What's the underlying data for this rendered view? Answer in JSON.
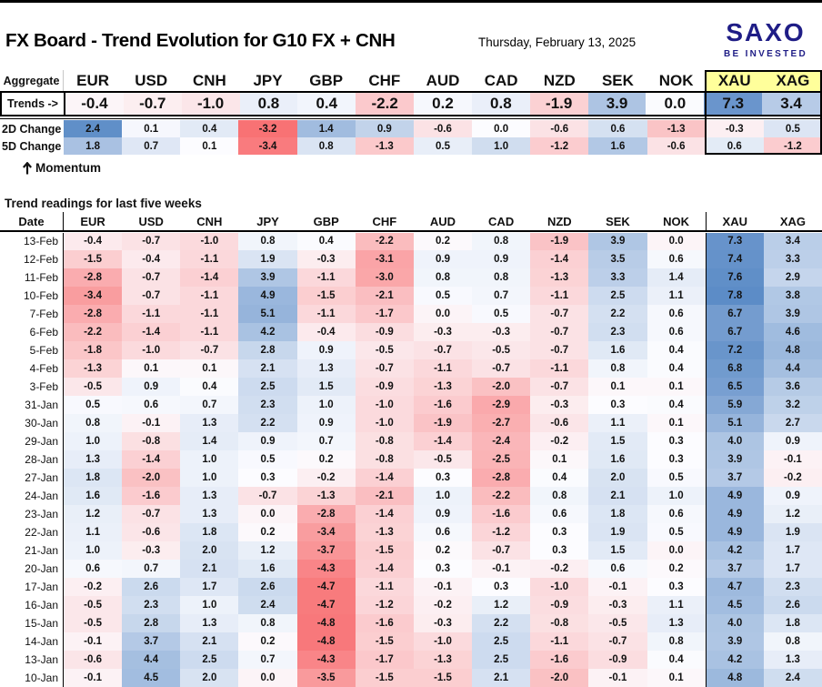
{
  "header": {
    "title": "FX Board - Trend Evolution for G10 FX + CNH",
    "date": "Thursday, February 13, 2025"
  },
  "logo": {
    "brand": "SAXO",
    "tagline": "BE INVESTED"
  },
  "aggregate": {
    "corner_label": "Aggregate",
    "trends_label": "Trends ->",
    "change_2d_label": "2D Change",
    "change_5d_label": "5D Change",
    "momentum_icon": "up-arrow",
    "momentum_label": "Momentum",
    "currencies": [
      "EUR",
      "USD",
      "CNH",
      "JPY",
      "GBP",
      "CHF",
      "AUD",
      "CAD",
      "NZD",
      "SEK",
      "NOK",
      "XAU",
      "XAG"
    ],
    "trends": [
      -0.4,
      -0.7,
      -1.0,
      0.8,
      0.4,
      -2.2,
      0.2,
      0.8,
      -1.9,
      3.9,
      0.0,
      7.3,
      3.4
    ],
    "change_2d": [
      2.4,
      0.1,
      0.4,
      -3.2,
      1.4,
      0.9,
      -0.6,
      0.0,
      -0.6,
      0.6,
      -1.3,
      -0.3,
      0.5
    ],
    "change_5d": [
      1.8,
      0.7,
      0.1,
      -3.4,
      0.8,
      -1.3,
      0.5,
      1.0,
      -1.2,
      1.6,
      -0.6,
      0.6,
      -1.2
    ]
  },
  "history": {
    "section_title": "Trend readings for last five weeks",
    "date_header": "Date",
    "currencies": [
      "EUR",
      "USD",
      "CNH",
      "JPY",
      "GBP",
      "CHF",
      "AUD",
      "CAD",
      "NZD",
      "SEK",
      "NOK",
      "XAU",
      "XAG"
    ],
    "rows": [
      {
        "date": "13-Feb",
        "values": [
          -0.4,
          -0.7,
          -1.0,
          0.8,
          0.4,
          -2.2,
          0.2,
          0.8,
          -1.9,
          3.9,
          0.0,
          7.3,
          3.4
        ]
      },
      {
        "date": "12-Feb",
        "values": [
          -1.5,
          -0.4,
          -1.1,
          1.9,
          -0.3,
          -3.1,
          0.9,
          0.9,
          -1.4,
          3.5,
          0.6,
          7.4,
          3.3
        ]
      },
      {
        "date": "11-Feb",
        "values": [
          -2.8,
          -0.7,
          -1.4,
          3.9,
          -1.1,
          -3.0,
          0.8,
          0.8,
          -1.3,
          3.3,
          1.4,
          7.6,
          2.9
        ]
      },
      {
        "date": "10-Feb",
        "values": [
          -3.4,
          -0.7,
          -1.1,
          4.9,
          -1.5,
          -2.1,
          0.5,
          0.7,
          -1.1,
          2.5,
          1.1,
          7.8,
          3.8
        ]
      },
      {
        "date": "7-Feb",
        "values": [
          -2.8,
          -1.1,
          -1.1,
          5.1,
          -1.1,
          -1.7,
          0.0,
          0.5,
          -0.7,
          2.2,
          0.6,
          6.7,
          3.9
        ]
      },
      {
        "date": "6-Feb",
        "values": [
          -2.2,
          -1.4,
          -1.1,
          4.2,
          -0.4,
          -0.9,
          -0.3,
          -0.3,
          -0.7,
          2.3,
          0.6,
          6.7,
          4.6
        ]
      },
      {
        "date": "5-Feb",
        "values": [
          -1.8,
          -1.0,
          -0.7,
          2.8,
          0.9,
          -0.5,
          -0.7,
          -0.5,
          -0.7,
          1.6,
          0.4,
          7.2,
          4.8
        ]
      },
      {
        "date": "4-Feb",
        "values": [
          -1.3,
          0.1,
          0.1,
          2.1,
          1.3,
          -0.7,
          -1.1,
          -0.7,
          -1.1,
          0.8,
          0.4,
          6.8,
          4.4
        ]
      },
      {
        "date": "3-Feb",
        "values": [
          -0.5,
          0.9,
          0.4,
          2.5,
          1.5,
          -0.9,
          -1.3,
          -2.0,
          -0.7,
          0.1,
          0.1,
          6.5,
          3.6
        ]
      },
      {
        "date": "31-Jan",
        "values": [
          0.5,
          0.6,
          0.7,
          2.3,
          1.0,
          -1.0,
          -1.6,
          -2.9,
          -0.3,
          0.3,
          0.4,
          5.9,
          3.2
        ]
      },
      {
        "date": "30-Jan",
        "values": [
          0.8,
          -0.1,
          1.3,
          2.2,
          0.9,
          -1.0,
          -1.9,
          -2.7,
          -0.6,
          1.1,
          0.1,
          5.1,
          2.7
        ]
      },
      {
        "date": "29-Jan",
        "values": [
          1.0,
          -0.8,
          1.4,
          0.9,
          0.7,
          -0.8,
          -1.4,
          -2.4,
          -0.2,
          1.5,
          0.3,
          4.0,
          0.9
        ]
      },
      {
        "date": "28-Jan",
        "values": [
          1.3,
          -1.4,
          1.0,
          0.5,
          0.2,
          -0.8,
          -0.5,
          -2.5,
          0.1,
          1.6,
          0.3,
          3.9,
          -0.1
        ]
      },
      {
        "date": "27-Jan",
        "values": [
          1.8,
          -2.0,
          1.0,
          0.3,
          -0.2,
          -1.4,
          0.3,
          -2.8,
          0.4,
          2.0,
          0.5,
          3.7,
          -0.2
        ]
      },
      {
        "date": "24-Jan",
        "values": [
          1.6,
          -1.6,
          1.3,
          -0.7,
          -1.3,
          -2.1,
          1.0,
          -2.2,
          0.8,
          2.1,
          1.0,
          4.9,
          0.9
        ]
      },
      {
        "date": "23-Jan",
        "values": [
          1.2,
          -0.7,
          1.3,
          0.0,
          -2.8,
          -1.4,
          0.9,
          -1.6,
          0.6,
          1.8,
          0.6,
          4.9,
          1.2
        ]
      },
      {
        "date": "22-Jan",
        "values": [
          1.1,
          -0.6,
          1.8,
          0.2,
          -3.4,
          -1.3,
          0.6,
          -1.2,
          0.3,
          1.9,
          0.5,
          4.9,
          1.9
        ]
      },
      {
        "date": "21-Jan",
        "values": [
          1.0,
          -0.3,
          2.0,
          1.2,
          -3.7,
          -1.5,
          0.2,
          -0.7,
          0.3,
          1.5,
          0.0,
          4.2,
          1.7
        ]
      },
      {
        "date": "20-Jan",
        "values": [
          0.6,
          0.7,
          2.1,
          1.6,
          -4.3,
          -1.4,
          0.3,
          -0.1,
          -0.2,
          0.6,
          0.2,
          3.7,
          1.7
        ]
      },
      {
        "date": "17-Jan",
        "values": [
          -0.2,
          2.6,
          1.7,
          2.6,
          -4.7,
          -1.1,
          -0.1,
          0.3,
          -1.0,
          -0.1,
          0.3,
          4.7,
          2.3
        ]
      },
      {
        "date": "16-Jan",
        "values": [
          -0.5,
          2.3,
          1.0,
          2.4,
          -4.7,
          -1.2,
          -0.2,
          1.2,
          -0.9,
          -0.3,
          1.1,
          4.5,
          2.6
        ]
      },
      {
        "date": "15-Jan",
        "values": [
          -0.5,
          2.8,
          1.3,
          0.8,
          -4.8,
          -1.6,
          -0.3,
          2.2,
          -0.8,
          -0.5,
          1.3,
          4.0,
          1.8
        ]
      },
      {
        "date": "14-Jan",
        "values": [
          -0.1,
          3.7,
          2.1,
          0.2,
          -4.8,
          -1.5,
          -1.0,
          2.5,
          -1.1,
          -0.7,
          0.8,
          3.9,
          0.8
        ]
      },
      {
        "date": "13-Jan",
        "values": [
          -0.6,
          4.4,
          2.5,
          0.7,
          -4.3,
          -1.7,
          -1.3,
          2.5,
          -1.6,
          -0.9,
          0.4,
          4.2,
          1.3
        ]
      },
      {
        "date": "10-Jan",
        "values": [
          -0.1,
          4.5,
          2.0,
          0.0,
          -3.5,
          -1.5,
          -1.5,
          2.1,
          -2.0,
          -0.1,
          0.1,
          4.8,
          2.4
        ]
      }
    ]
  },
  "colors": {
    "scale_blue": "#5A8AC6",
    "scale_white": "#FCFCFF",
    "scale_red": "#F8696B",
    "logo_navy": "#1F1D86",
    "header_highlight_yellow": "#FFFF9B"
  }
}
